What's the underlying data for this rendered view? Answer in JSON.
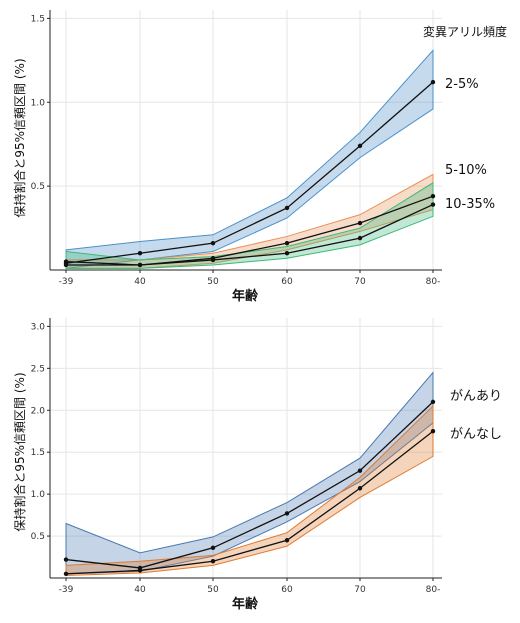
{
  "chart_data": [
    {
      "type": "line",
      "xlabel": "年齢",
      "ylabel": "保持割合と95%信頼区間 (%)",
      "legend_title": "変異アリル頻度",
      "legend_placement": "right",
      "categories": [
        "-39",
        "40",
        "50",
        "60",
        "70",
        "80-"
      ],
      "y_ticks": [
        "0.5",
        "1.0",
        "1.5"
      ],
      "ylim": [
        0,
        1.55
      ],
      "grid": true,
      "series": [
        {
          "name": "2-5%",
          "color": "#4a90c8",
          "values": [
            0.04,
            0.1,
            0.16,
            0.37,
            0.74,
            1.12
          ],
          "lower": [
            0.01,
            0.06,
            0.11,
            0.31,
            0.67,
            0.96
          ],
          "upper": [
            0.12,
            0.17,
            0.21,
            0.43,
            0.82,
            1.31
          ]
        },
        {
          "name": "5-10%",
          "color": "#e8915a",
          "values": [
            0.03,
            0.03,
            0.07,
            0.16,
            0.28,
            0.44
          ],
          "lower": [
            0.01,
            0.01,
            0.04,
            0.12,
            0.23,
            0.36
          ],
          "upper": [
            0.06,
            0.06,
            0.1,
            0.2,
            0.33,
            0.57
          ]
        },
        {
          "name": "10-35%",
          "color": "#3cb878",
          "values": [
            0.05,
            0.03,
            0.06,
            0.1,
            0.19,
            0.39
          ],
          "lower": [
            0.01,
            0.01,
            0.03,
            0.07,
            0.15,
            0.32
          ],
          "upper": [
            0.11,
            0.06,
            0.08,
            0.14,
            0.25,
            0.52
          ]
        }
      ]
    },
    {
      "type": "line",
      "xlabel": "年齢",
      "ylabel": "保持割合と95%信頼区間 (%)",
      "legend_title": "",
      "legend_placement": "right",
      "categories": [
        "-39",
        "40",
        "50",
        "60",
        "70",
        "80-"
      ],
      "y_ticks": [
        "0.5",
        "1.0",
        "1.5",
        "2.0",
        "2.5",
        "3.0"
      ],
      "ylim": [
        0,
        3.1
      ],
      "grid": true,
      "series": [
        {
          "name": "がんあり",
          "color": "#4a7ab0",
          "values": [
            0.22,
            0.12,
            0.36,
            0.77,
            1.28,
            2.1
          ],
          "lower": [
            0.05,
            0.08,
            0.26,
            0.67,
            1.15,
            1.85
          ],
          "upper": [
            0.65,
            0.3,
            0.49,
            0.9,
            1.43,
            2.45
          ]
        },
        {
          "name": "がんなし",
          "color": "#e07a30",
          "values": [
            0.05,
            0.09,
            0.2,
            0.45,
            1.07,
            1.75
          ],
          "lower": [
            0.03,
            0.06,
            0.15,
            0.38,
            0.96,
            1.45
          ],
          "upper": [
            0.15,
            0.2,
            0.27,
            0.54,
            1.2,
            2.05
          ]
        }
      ]
    }
  ]
}
